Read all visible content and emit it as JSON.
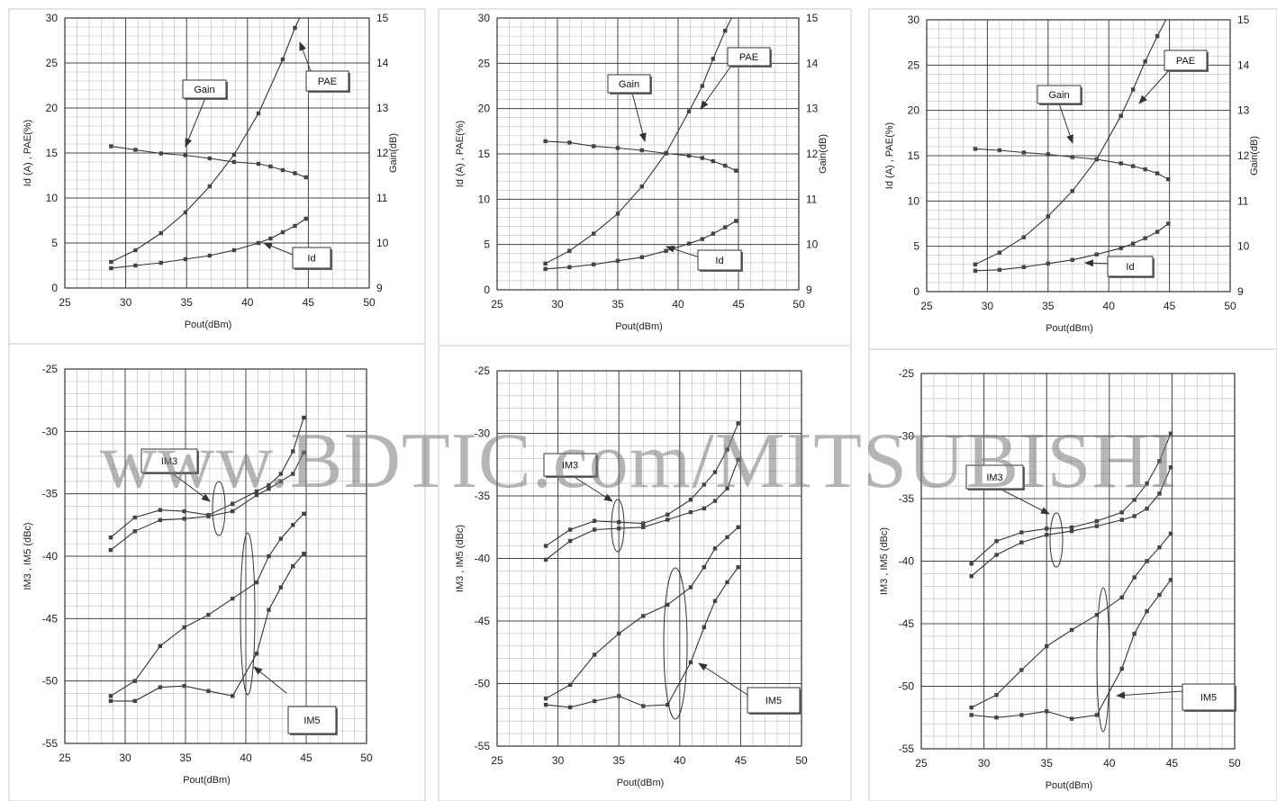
{
  "watermark": "www.BDTIC.com/MITSUBISHI",
  "chart_data": [
    {
      "type": "line",
      "panel": "top-left",
      "xlabel": "Pout(dBm)",
      "ylabel": "Id (A) , PAE(%)",
      "y2label": "Gain(dB)",
      "xlim": [
        25,
        50
      ],
      "ylim": [
        0,
        30
      ],
      "y2lim": [
        9,
        15
      ],
      "xticks": [
        25,
        30,
        35,
        40,
        45,
        50
      ],
      "yticks": [
        0,
        5,
        10,
        15,
        20,
        25,
        30
      ],
      "y2ticks": [
        9,
        10,
        11,
        12,
        13,
        14,
        15
      ],
      "series": [
        {
          "name": "PAE",
          "axis": "left",
          "x": [
            28.8,
            30.8,
            32.9,
            34.9,
            36.9,
            38.9,
            40.9,
            42.9,
            43.9,
            44.8
          ],
          "y": [
            2.9,
            4.2,
            6.1,
            8.4,
            11.3,
            14.8,
            19.4,
            25.4,
            28.9,
            31.5
          ]
        },
        {
          "name": "Id",
          "axis": "left",
          "x": [
            28.8,
            30.8,
            32.9,
            34.9,
            36.9,
            38.9,
            40.9,
            41.9,
            42.9,
            43.9,
            44.8
          ],
          "y": [
            2.2,
            2.5,
            2.8,
            3.2,
            3.6,
            4.2,
            5.0,
            5.5,
            6.2,
            6.9,
            7.7
          ]
        },
        {
          "name": "Gain",
          "axis": "right",
          "x": [
            28.8,
            30.8,
            32.9,
            34.9,
            36.9,
            38.9,
            40.9,
            41.9,
            42.9,
            43.9,
            44.8
          ],
          "y": [
            12.15,
            12.07,
            11.99,
            11.95,
            11.88,
            11.8,
            11.76,
            11.7,
            11.62,
            11.55,
            11.46
          ]
        }
      ],
      "callouts": [
        "Gain",
        "PAE",
        "Id"
      ]
    },
    {
      "type": "line",
      "panel": "top-middle",
      "xlabel": "Pout(dBm)",
      "ylabel": "Id (A) , PAE(%)",
      "y2label": "Gain(dB)",
      "xlim": [
        25,
        50
      ],
      "ylim": [
        0,
        30
      ],
      "y2lim": [
        9,
        15
      ],
      "xticks": [
        25,
        30,
        35,
        40,
        45,
        50
      ],
      "yticks": [
        0,
        5,
        10,
        15,
        20,
        25,
        30
      ],
      "y2ticks": [
        9,
        10,
        11,
        12,
        13,
        14,
        15
      ],
      "series": [
        {
          "name": "PAE",
          "axis": "left",
          "x": [
            29.0,
            31.0,
            33.0,
            35.0,
            37.0,
            39.0,
            40.9,
            42.0,
            42.9,
            43.9,
            44.8
          ],
          "y": [
            2.9,
            4.3,
            6.2,
            8.4,
            11.4,
            15.1,
            19.7,
            22.5,
            25.5,
            28.6,
            31.0
          ]
        },
        {
          "name": "Id",
          "axis": "left",
          "x": [
            29.0,
            31.0,
            33.0,
            35.0,
            37.0,
            39.0,
            40.9,
            42.0,
            42.9,
            43.9,
            44.8
          ],
          "y": [
            2.3,
            2.5,
            2.8,
            3.2,
            3.6,
            4.3,
            5.1,
            5.6,
            6.2,
            6.9,
            7.6
          ]
        },
        {
          "name": "Gain",
          "axis": "right",
          "x": [
            29.0,
            31.0,
            33.0,
            35.0,
            37.0,
            39.0,
            40.9,
            42.0,
            42.9,
            43.9,
            44.8
          ],
          "y": [
            12.28,
            12.25,
            12.17,
            12.13,
            12.08,
            12.01,
            11.96,
            11.91,
            11.84,
            11.74,
            11.63
          ]
        }
      ],
      "callouts": [
        "Gain",
        "PAE",
        "Id"
      ]
    },
    {
      "type": "line",
      "panel": "top-right",
      "xlabel": "Pout(dBm)",
      "ylabel": "Id (A) , PAE(%)",
      "y2label": "Gain(dB)",
      "xlim": [
        25,
        50
      ],
      "ylim": [
        0,
        30
      ],
      "y2lim": [
        9,
        15
      ],
      "xticks": [
        25,
        30,
        35,
        40,
        45,
        50
      ],
      "yticks": [
        0,
        5,
        10,
        15,
        20,
        25,
        30
      ],
      "y2ticks": [
        9,
        10,
        11,
        12,
        13,
        14,
        15
      ],
      "series": [
        {
          "name": "PAE",
          "axis": "left",
          "x": [
            29.0,
            31.0,
            33.0,
            35.0,
            37.0,
            39.0,
            41.0,
            42.0,
            43.0,
            44.0,
            44.9
          ],
          "y": [
            3.0,
            4.3,
            6.0,
            8.3,
            11.1,
            14.6,
            19.4,
            22.3,
            25.4,
            28.2,
            30.5
          ]
        },
        {
          "name": "Id",
          "axis": "left",
          "x": [
            29.0,
            31.0,
            33.0,
            35.0,
            37.0,
            39.0,
            41.0,
            42.0,
            43.0,
            44.0,
            44.9
          ],
          "y": [
            2.3,
            2.4,
            2.7,
            3.1,
            3.5,
            4.1,
            4.8,
            5.3,
            5.9,
            6.6,
            7.5
          ]
        },
        {
          "name": "Gain",
          "axis": "right",
          "x": [
            29.0,
            31.0,
            33.0,
            35.0,
            37.0,
            39.0,
            41.0,
            42.0,
            43.0,
            44.0,
            44.9
          ],
          "y": [
            12.15,
            12.12,
            12.07,
            12.03,
            11.97,
            11.92,
            11.83,
            11.77,
            11.7,
            11.61,
            11.48
          ]
        }
      ],
      "callouts": [
        "Gain",
        "PAE",
        "Id"
      ]
    },
    {
      "type": "line",
      "panel": "bottom-left",
      "xlabel": "Pout(dBm)",
      "ylabel": "IM3 , IM5 (dBc)",
      "xlim": [
        25,
        50
      ],
      "ylim": [
        -55,
        -25
      ],
      "xticks": [
        25,
        30,
        35,
        40,
        45,
        50
      ],
      "yticks": [
        -25,
        -30,
        -35,
        -40,
        -45,
        -50,
        -55
      ],
      "series": [
        {
          "name": "IM3",
          "x": [
            28.8,
            30.8,
            32.9,
            34.9,
            36.9,
            38.9,
            40.9,
            41.9,
            42.9,
            43.9,
            44.8
          ],
          "y": [
            -38.5,
            -36.9,
            -36.3,
            -36.4,
            -36.7,
            -35.8,
            -34.8,
            -34.3,
            -33.4,
            -31.6,
            -28.9
          ]
        },
        {
          "name": "IM3",
          "x": [
            28.8,
            30.8,
            32.9,
            34.9,
            36.9,
            38.9,
            40.9,
            41.9,
            42.9,
            43.9,
            44.8
          ],
          "y": [
            -39.5,
            -38.0,
            -37.1,
            -37.0,
            -36.8,
            -36.4,
            -35.1,
            -34.6,
            -34.0,
            -33.4,
            -31.7
          ]
        },
        {
          "name": "IM5",
          "x": [
            28.8,
            30.8,
            32.9,
            34.9,
            36.9,
            38.9,
            40.9,
            41.9,
            42.9,
            43.9,
            44.8
          ],
          "y": [
            -51.2,
            -50.0,
            -47.2,
            -45.7,
            -44.7,
            -43.4,
            -42.1,
            -40.0,
            -38.6,
            -37.5,
            -36.6
          ]
        },
        {
          "name": "IM5",
          "x": [
            28.8,
            30.8,
            32.9,
            34.9,
            36.9,
            38.9,
            40.9,
            41.9,
            42.9,
            43.9,
            44.8
          ],
          "y": [
            -51.6,
            -51.6,
            -50.5,
            -50.4,
            -50.8,
            -51.2,
            -47.8,
            -44.3,
            -42.5,
            -40.8,
            -39.8
          ]
        }
      ],
      "callouts": [
        "IM3",
        "IM5"
      ]
    },
    {
      "type": "line",
      "panel": "bottom-middle",
      "xlabel": "Pout(dBm)",
      "ylabel": "IM3 , IM5 (dBc)",
      "xlim": [
        25,
        50
      ],
      "ylim": [
        -55,
        -25
      ],
      "xticks": [
        25,
        30,
        35,
        40,
        45,
        50
      ],
      "yticks": [
        -25,
        -30,
        -35,
        -40,
        -45,
        -50,
        -55
      ],
      "series": [
        {
          "name": "IM3",
          "x": [
            29.0,
            31.0,
            33.0,
            35.0,
            37.0,
            39.0,
            40.9,
            42.0,
            42.9,
            43.9,
            44.8
          ],
          "y": [
            -39.0,
            -37.7,
            -37.0,
            -37.1,
            -37.2,
            -36.5,
            -35.3,
            -34.1,
            -33.1,
            -31.3,
            -29.2
          ]
        },
        {
          "name": "IM3",
          "x": [
            29.0,
            31.0,
            33.0,
            35.0,
            37.0,
            39.0,
            40.9,
            42.0,
            42.9,
            43.9,
            44.8
          ],
          "y": [
            -40.1,
            -38.6,
            -37.7,
            -37.6,
            -37.5,
            -36.9,
            -36.3,
            -36.0,
            -35.4,
            -34.4,
            -32.1
          ]
        },
        {
          "name": "IM5",
          "x": [
            29.0,
            31.0,
            33.0,
            35.0,
            37.0,
            39.0,
            40.9,
            42.0,
            42.9,
            43.9,
            44.8
          ],
          "y": [
            -51.2,
            -50.1,
            -47.7,
            -46.0,
            -44.6,
            -43.7,
            -42.3,
            -40.7,
            -39.2,
            -38.3,
            -37.5
          ]
        },
        {
          "name": "IM5",
          "x": [
            29.0,
            31.0,
            33.0,
            35.0,
            37.0,
            39.0,
            40.9,
            42.0,
            42.9,
            43.9,
            44.8
          ],
          "y": [
            -51.7,
            -51.9,
            -51.4,
            -51.0,
            -51.8,
            -51.7,
            -48.3,
            -45.5,
            -43.4,
            -41.9,
            -40.7
          ]
        }
      ],
      "callouts": [
        "IM3",
        "IM5"
      ]
    },
    {
      "type": "line",
      "panel": "bottom-right",
      "xlabel": "Pout(dBm)",
      "ylabel": "IM3 , IM5 (dBc)",
      "xlim": [
        25,
        50
      ],
      "ylim": [
        -55,
        -25
      ],
      "xticks": [
        25,
        30,
        35,
        40,
        45,
        50
      ],
      "yticks": [
        -25,
        -30,
        -35,
        -40,
        -45,
        -50,
        -55
      ],
      "series": [
        {
          "name": "IM3",
          "x": [
            29.0,
            31.0,
            33.0,
            35.0,
            37.0,
            39.0,
            41.0,
            42.0,
            43.0,
            44.0,
            44.9
          ],
          "y": [
            -40.2,
            -38.4,
            -37.7,
            -37.4,
            -37.3,
            -36.8,
            -36.1,
            -35.1,
            -33.8,
            -32.0,
            -29.8
          ]
        },
        {
          "name": "IM3",
          "x": [
            29.0,
            31.0,
            33.0,
            35.0,
            37.0,
            39.0,
            41.0,
            42.0,
            43.0,
            44.0,
            44.9
          ],
          "y": [
            -41.2,
            -39.5,
            -38.5,
            -37.9,
            -37.6,
            -37.2,
            -36.7,
            -36.4,
            -35.8,
            -34.6,
            -32.5
          ]
        },
        {
          "name": "IM5",
          "x": [
            29.0,
            31.0,
            33.0,
            35.0,
            37.0,
            39.0,
            41.0,
            42.0,
            43.0,
            44.0,
            44.9
          ],
          "y": [
            -51.7,
            -50.7,
            -48.7,
            -46.8,
            -45.5,
            -44.3,
            -42.9,
            -41.3,
            -40.0,
            -38.9,
            -37.8
          ]
        },
        {
          "name": "IM5",
          "x": [
            29.0,
            31.0,
            33.0,
            35.0,
            37.0,
            39.0,
            41.0,
            42.0,
            43.0,
            44.0,
            44.9
          ],
          "y": [
            -52.3,
            -52.5,
            -52.3,
            -52.0,
            -52.6,
            -52.3,
            -48.6,
            -45.8,
            -44.0,
            -42.7,
            -41.5
          ]
        }
      ],
      "callouts": [
        "IM3",
        "IM5"
      ]
    }
  ]
}
